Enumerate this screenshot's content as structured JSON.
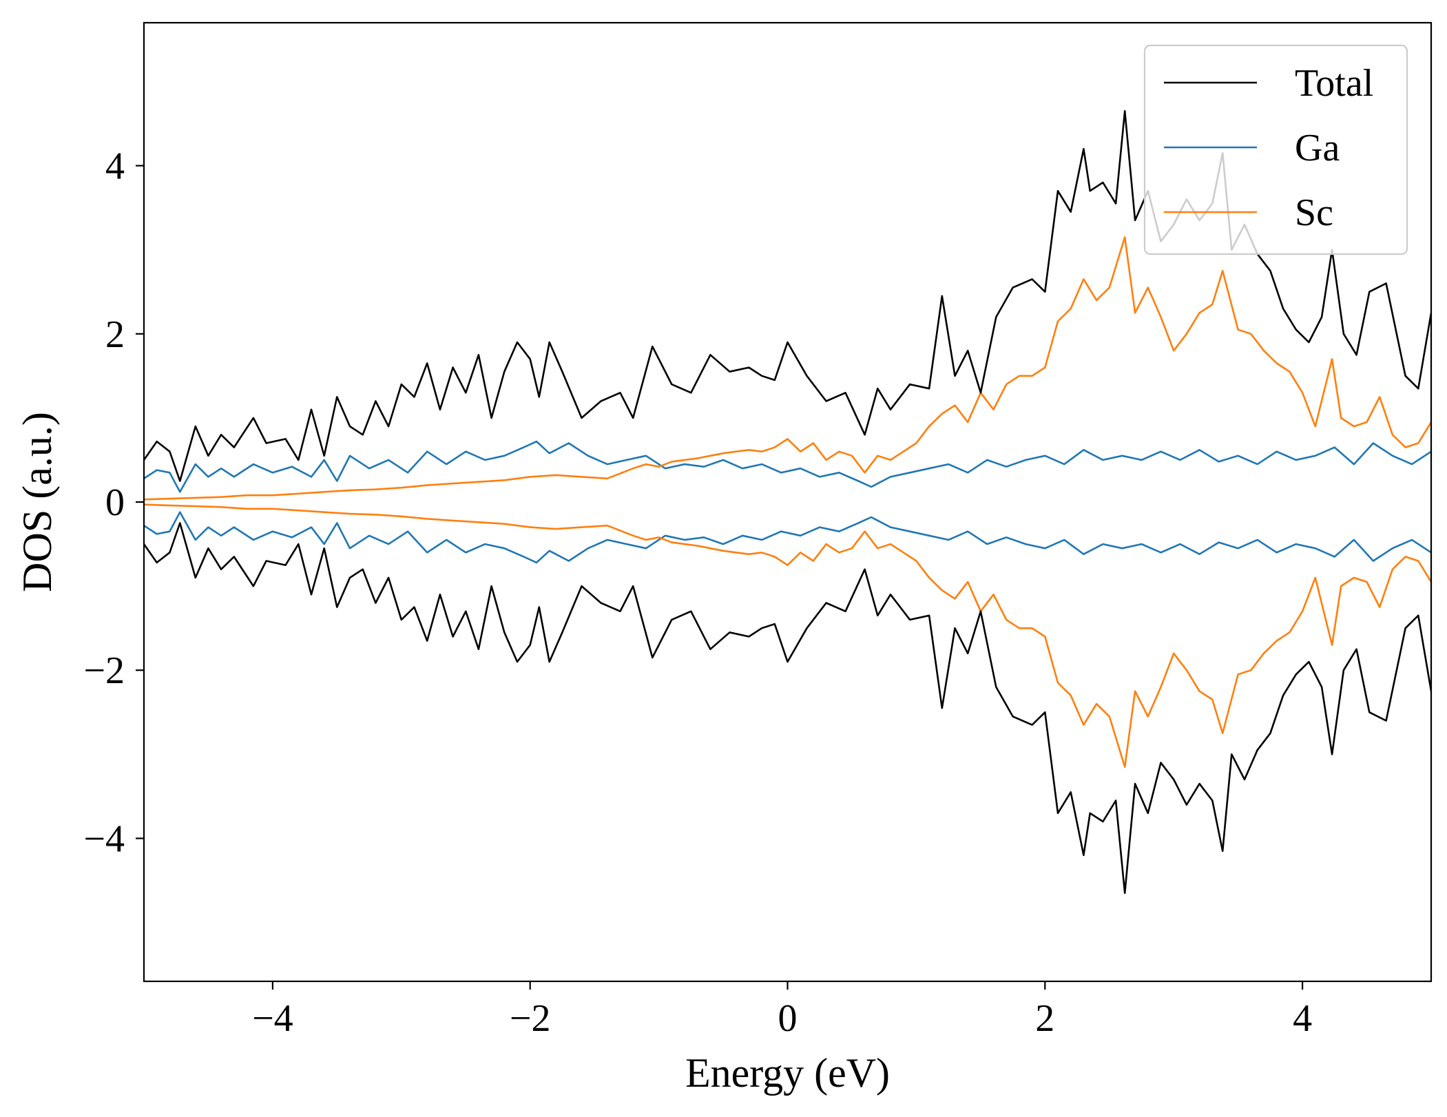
{
  "chart_data": {
    "type": "line",
    "title": "",
    "xlabel": "Energy (eV)",
    "ylabel": "DOS (a.u.)",
    "xlim": [
      -5,
      5
    ],
    "ylim": [
      -5.7,
      5.7
    ],
    "xticks": [
      -4,
      -2,
      0,
      2,
      4
    ],
    "yticks": [
      -4,
      -2,
      0,
      2,
      4
    ],
    "xtick_labels": [
      "−4",
      "−2",
      "0",
      "2",
      "4"
    ],
    "ytick_labels": [
      "−4",
      "−2",
      "0",
      "2",
      "4"
    ],
    "grid": false,
    "legend_position": "top-right",
    "spin_mirror": true,
    "series": [
      {
        "name": "Total",
        "color": "#000000",
        "x": [
          -5.0,
          -4.9,
          -4.8,
          -4.72,
          -4.6,
          -4.5,
          -4.4,
          -4.3,
          -4.15,
          -4.05,
          -3.9,
          -3.8,
          -3.7,
          -3.6,
          -3.5,
          -3.4,
          -3.3,
          -3.2,
          -3.1,
          -3.0,
          -2.9,
          -2.8,
          -2.7,
          -2.6,
          -2.5,
          -2.4,
          -2.3,
          -2.2,
          -2.1,
          -2.0,
          -1.93,
          -1.85,
          -1.75,
          -1.6,
          -1.45,
          -1.3,
          -1.2,
          -1.05,
          -0.9,
          -0.75,
          -0.6,
          -0.45,
          -0.3,
          -0.2,
          -0.1,
          0.0,
          0.15,
          0.3,
          0.45,
          0.6,
          0.7,
          0.8,
          0.95,
          1.1,
          1.2,
          1.3,
          1.4,
          1.5,
          1.62,
          1.75,
          1.9,
          2.0,
          2.1,
          2.2,
          2.3,
          2.35,
          2.45,
          2.55,
          2.62,
          2.7,
          2.8,
          2.9,
          3.0,
          3.1,
          3.2,
          3.3,
          3.38,
          3.45,
          3.55,
          3.65,
          3.75,
          3.85,
          3.95,
          4.05,
          4.15,
          4.23,
          4.32,
          4.42,
          4.52,
          4.65,
          4.8,
          4.9,
          5.0
        ],
        "y": [
          0.5,
          0.72,
          0.6,
          0.25,
          0.9,
          0.55,
          0.8,
          0.65,
          1.0,
          0.7,
          0.75,
          0.5,
          1.1,
          0.55,
          1.25,
          0.9,
          0.8,
          1.2,
          0.9,
          1.4,
          1.25,
          1.65,
          1.1,
          1.6,
          1.3,
          1.75,
          1.0,
          1.55,
          1.9,
          1.7,
          1.25,
          1.9,
          1.55,
          1.0,
          1.2,
          1.3,
          1.0,
          1.85,
          1.4,
          1.3,
          1.75,
          1.55,
          1.6,
          1.5,
          1.45,
          1.9,
          1.5,
          1.2,
          1.3,
          0.8,
          1.35,
          1.1,
          1.4,
          1.35,
          2.45,
          1.5,
          1.8,
          1.3,
          2.2,
          2.55,
          2.65,
          2.5,
          3.7,
          3.45,
          4.2,
          3.7,
          3.8,
          3.55,
          4.65,
          3.35,
          3.7,
          3.1,
          3.3,
          3.6,
          3.35,
          3.55,
          4.15,
          3.0,
          3.3,
          2.95,
          2.75,
          2.3,
          2.05,
          1.9,
          2.2,
          3.0,
          2.0,
          1.75,
          2.5,
          2.6,
          1.5,
          1.35,
          2.25
        ]
      },
      {
        "name": "Ga",
        "color": "#1f77b4",
        "x": [
          -5.0,
          -4.9,
          -4.8,
          -4.72,
          -4.6,
          -4.5,
          -4.4,
          -4.3,
          -4.15,
          -4.0,
          -3.85,
          -3.7,
          -3.6,
          -3.5,
          -3.4,
          -3.25,
          -3.1,
          -2.95,
          -2.8,
          -2.65,
          -2.5,
          -2.35,
          -2.2,
          -2.05,
          -1.95,
          -1.85,
          -1.7,
          -1.55,
          -1.4,
          -1.25,
          -1.1,
          -0.95,
          -0.8,
          -0.65,
          -0.5,
          -0.35,
          -0.2,
          -0.05,
          0.1,
          0.25,
          0.4,
          0.55,
          0.65,
          0.8,
          0.95,
          1.1,
          1.25,
          1.4,
          1.55,
          1.7,
          1.85,
          2.0,
          2.15,
          2.3,
          2.45,
          2.6,
          2.75,
          2.9,
          3.05,
          3.2,
          3.35,
          3.5,
          3.65,
          3.8,
          3.95,
          4.1,
          4.25,
          4.4,
          4.55,
          4.7,
          4.85,
          5.0
        ],
        "y": [
          0.28,
          0.38,
          0.35,
          0.12,
          0.45,
          0.3,
          0.4,
          0.3,
          0.45,
          0.35,
          0.42,
          0.3,
          0.5,
          0.25,
          0.55,
          0.4,
          0.5,
          0.35,
          0.6,
          0.45,
          0.6,
          0.5,
          0.55,
          0.65,
          0.72,
          0.58,
          0.7,
          0.55,
          0.45,
          0.5,
          0.55,
          0.4,
          0.45,
          0.42,
          0.5,
          0.4,
          0.45,
          0.35,
          0.4,
          0.3,
          0.35,
          0.25,
          0.18,
          0.3,
          0.35,
          0.4,
          0.45,
          0.35,
          0.5,
          0.42,
          0.5,
          0.55,
          0.45,
          0.62,
          0.5,
          0.55,
          0.5,
          0.6,
          0.5,
          0.62,
          0.48,
          0.55,
          0.45,
          0.6,
          0.5,
          0.55,
          0.65,
          0.45,
          0.7,
          0.55,
          0.45,
          0.6
        ]
      },
      {
        "name": "Sc",
        "color": "#ff7f0e",
        "x": [
          -5.0,
          -4.8,
          -4.6,
          -4.4,
          -4.2,
          -4.0,
          -3.8,
          -3.6,
          -3.4,
          -3.2,
          -3.0,
          -2.8,
          -2.6,
          -2.4,
          -2.2,
          -2.0,
          -1.8,
          -1.6,
          -1.4,
          -1.2,
          -1.1,
          -1.0,
          -0.9,
          -0.8,
          -0.7,
          -0.6,
          -0.5,
          -0.4,
          -0.3,
          -0.2,
          -0.1,
          0.0,
          0.1,
          0.2,
          0.3,
          0.4,
          0.5,
          0.6,
          0.7,
          0.8,
          0.9,
          1.0,
          1.1,
          1.2,
          1.3,
          1.4,
          1.5,
          1.6,
          1.7,
          1.8,
          1.9,
          2.0,
          2.1,
          2.2,
          2.3,
          2.4,
          2.5,
          2.62,
          2.7,
          2.8,
          2.9,
          3.0,
          3.1,
          3.2,
          3.3,
          3.38,
          3.5,
          3.6,
          3.7,
          3.8,
          3.9,
          4.0,
          4.1,
          4.23,
          4.3,
          4.4,
          4.5,
          4.6,
          4.7,
          4.8,
          4.9,
          5.0
        ],
        "y": [
          0.03,
          0.04,
          0.05,
          0.06,
          0.08,
          0.08,
          0.1,
          0.12,
          0.14,
          0.15,
          0.17,
          0.2,
          0.22,
          0.24,
          0.26,
          0.3,
          0.32,
          0.3,
          0.28,
          0.4,
          0.45,
          0.42,
          0.48,
          0.5,
          0.52,
          0.55,
          0.58,
          0.6,
          0.62,
          0.6,
          0.65,
          0.75,
          0.6,
          0.7,
          0.5,
          0.6,
          0.55,
          0.35,
          0.55,
          0.5,
          0.6,
          0.7,
          0.9,
          1.05,
          1.15,
          0.95,
          1.3,
          1.1,
          1.4,
          1.5,
          1.5,
          1.6,
          2.15,
          2.3,
          2.65,
          2.4,
          2.55,
          3.15,
          2.25,
          2.55,
          2.2,
          1.8,
          2.0,
          2.25,
          2.35,
          2.75,
          2.05,
          2.0,
          1.8,
          1.65,
          1.55,
          1.3,
          0.9,
          1.7,
          1.0,
          0.9,
          0.95,
          1.25,
          0.8,
          0.65,
          0.7,
          0.95
        ]
      }
    ]
  }
}
